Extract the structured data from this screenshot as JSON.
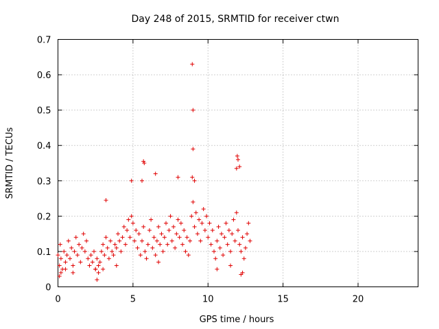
{
  "chart_data": {
    "type": "scatter",
    "title": "Day 248 of 2015, SRMTID for receiver ctwn",
    "xlabel": "GPS time / hours",
    "ylabel": "SRMTID / TECUs",
    "xlim": [
      0,
      24
    ],
    "ylim": [
      0,
      0.7
    ],
    "xticks": [
      0,
      5,
      10,
      15,
      20
    ],
    "yticks": [
      0,
      0.1,
      0.2,
      0.3,
      0.4,
      0.5,
      0.6,
      0.7
    ],
    "xtick_labels": [
      "0",
      "5",
      "10",
      "15",
      "20"
    ],
    "ytick_labels": [
      "0",
      "0.1",
      "0.2",
      "0.3",
      "0.4",
      "0.5",
      "0.6",
      "0.7"
    ],
    "grid": true,
    "legend": "none",
    "marker": "plus",
    "color": "#e00000",
    "series": [
      {
        "name": "SRMTID",
        "x": [
          0.0,
          0.1,
          0.15,
          0.2,
          0.3,
          0.4,
          0.5,
          0.6,
          0.7,
          0.8,
          0.9,
          1.0,
          1.1,
          1.2,
          1.3,
          1.4,
          1.5,
          1.6,
          1.7,
          1.8,
          1.9,
          2.0,
          2.1,
          2.2,
          2.3,
          2.4,
          2.5,
          2.6,
          2.7,
          2.8,
          2.9,
          3.0,
          3.1,
          3.2,
          3.3,
          3.4,
          3.5,
          3.6,
          3.7,
          3.8,
          3.9,
          4.0,
          4.1,
          4.2,
          4.3,
          4.4,
          4.5,
          4.6,
          4.7,
          4.8,
          4.9,
          5.0,
          5.1,
          5.2,
          5.3,
          5.4,
          5.5,
          5.6,
          5.7,
          5.8,
          5.9,
          6.0,
          6.1,
          6.2,
          6.3,
          6.4,
          6.5,
          6.6,
          6.7,
          6.8,
          6.9,
          7.0,
          7.1,
          7.2,
          7.3,
          7.4,
          7.5,
          7.6,
          7.7,
          7.8,
          7.9,
          8.0,
          8.1,
          8.2,
          8.3,
          8.4,
          8.5,
          8.6,
          8.7,
          8.8,
          8.9,
          9.0,
          9.1,
          9.2,
          9.3,
          9.4,
          9.5,
          9.6,
          9.7,
          9.8,
          9.9,
          10.0,
          10.1,
          10.2,
          10.3,
          10.4,
          10.5,
          10.6,
          10.7,
          10.8,
          10.9,
          11.0,
          11.1,
          11.2,
          11.3,
          11.4,
          11.5,
          11.6,
          11.7,
          11.8,
          11.9,
          12.0,
          12.1,
          12.2,
          12.3,
          12.4,
          12.5,
          12.6,
          12.7,
          12.8,
          8.95,
          9.0,
          9.0,
          8.95,
          5.7,
          5.75,
          11.95,
          12.0,
          11.9,
          12.1,
          6.5,
          8.0,
          3.2,
          4.9,
          5.6,
          9.1,
          0.1,
          0.2,
          0.5,
          1.0,
          2.5,
          2.6,
          2.7,
          3.0,
          3.9,
          6.7,
          10.6,
          11.5,
          12.2,
          12.3
        ],
        "y": [
          0.09,
          0.06,
          0.12,
          0.08,
          0.05,
          0.1,
          0.07,
          0.09,
          0.13,
          0.08,
          0.11,
          0.06,
          0.1,
          0.14,
          0.09,
          0.12,
          0.07,
          0.11,
          0.15,
          0.1,
          0.13,
          0.08,
          0.06,
          0.09,
          0.07,
          0.1,
          0.05,
          0.08,
          0.06,
          0.07,
          0.1,
          0.12,
          0.09,
          0.14,
          0.11,
          0.08,
          0.13,
          0.1,
          0.09,
          0.12,
          0.11,
          0.15,
          0.13,
          0.1,
          0.14,
          0.17,
          0.12,
          0.16,
          0.19,
          0.14,
          0.2,
          0.18,
          0.13,
          0.16,
          0.11,
          0.15,
          0.09,
          0.13,
          0.17,
          0.1,
          0.08,
          0.12,
          0.16,
          0.19,
          0.11,
          0.14,
          0.09,
          0.13,
          0.17,
          0.12,
          0.15,
          0.1,
          0.14,
          0.18,
          0.12,
          0.16,
          0.2,
          0.13,
          0.17,
          0.11,
          0.15,
          0.19,
          0.14,
          0.18,
          0.12,
          0.16,
          0.1,
          0.14,
          0.09,
          0.13,
          0.2,
          0.24,
          0.17,
          0.21,
          0.15,
          0.19,
          0.13,
          0.18,
          0.22,
          0.16,
          0.2,
          0.14,
          0.18,
          0.12,
          0.16,
          0.1,
          0.08,
          0.13,
          0.17,
          0.11,
          0.15,
          0.09,
          0.14,
          0.18,
          0.12,
          0.16,
          0.1,
          0.15,
          0.19,
          0.13,
          0.21,
          0.16,
          0.12,
          0.1,
          0.14,
          0.08,
          0.11,
          0.15,
          0.18,
          0.13,
          0.63,
          0.5,
          0.39,
          0.31,
          0.355,
          0.35,
          0.37,
          0.36,
          0.335,
          0.34,
          0.32,
          0.31,
          0.245,
          0.3,
          0.3,
          0.3,
          0.03,
          0.04,
          0.05,
          0.04,
          0.05,
          0.02,
          0.04,
          0.05,
          0.06,
          0.07,
          0.05,
          0.06,
          0.035,
          0.04
        ]
      }
    ]
  }
}
